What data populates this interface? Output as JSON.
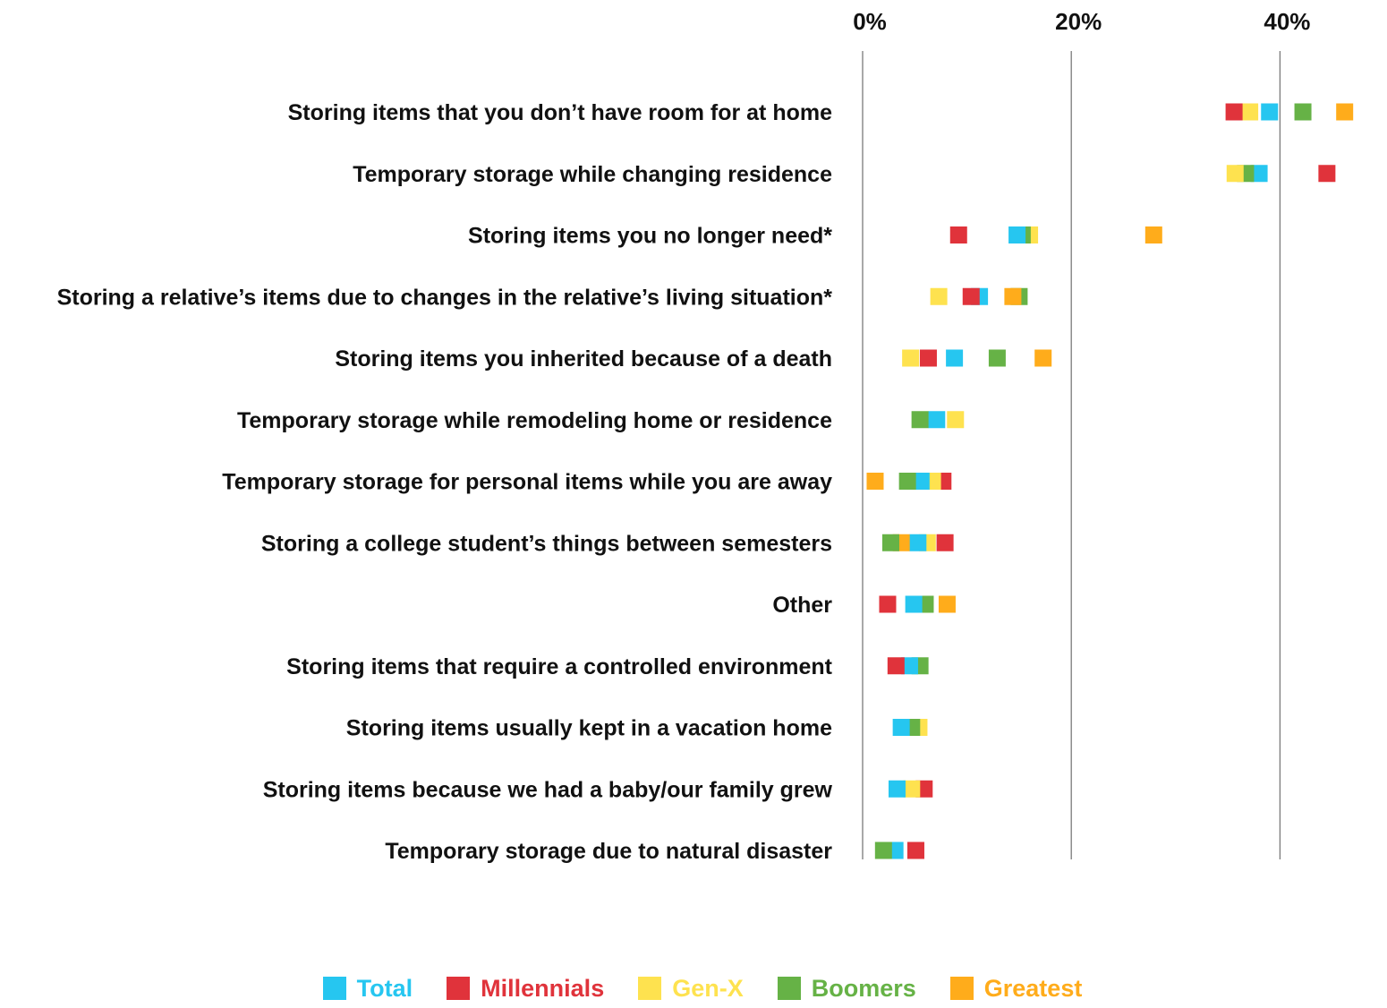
{
  "chart_data": {
    "type": "scatter",
    "title": "",
    "xlabel": "",
    "ylabel": "",
    "xlim": [
      0,
      50
    ],
    "x_ticks": [
      {
        "value": 0,
        "label": "0%"
      },
      {
        "value": 20,
        "label": "20%"
      },
      {
        "value": 40,
        "label": "40%"
      }
    ],
    "grid": true,
    "legend_position": "bottom",
    "categories": [
      "Storing items that you don’t have room for at home",
      "Temporary storage while changing residence",
      "Storing items you no longer need*",
      "Storing a relative’s items due to changes in the relative’s living situation*",
      "Storing items you inherited because of a death",
      "Temporary storage while remodeling home or residence",
      "Temporary storage for personal items while you are away",
      "Storing a college student’s things between semesters",
      "Other",
      "Storing items that require a controlled environment",
      "Storing items usually kept in a vacation home",
      "Storing items because we had a baby/our family grew",
      "Temporary storage due to natural disaster"
    ],
    "series": [
      {
        "name": "Total",
        "color": "#26c6f0",
        "values": [
          39.0,
          38.0,
          14.8,
          11.2,
          8.8,
          7.1,
          5.6,
          5.3,
          4.9,
          4.5,
          3.7,
          3.3,
          3.1
        ]
      },
      {
        "name": "Millennials",
        "color": "#e0333b",
        "values": [
          35.6,
          44.5,
          9.2,
          10.4,
          6.3,
          null,
          7.7,
          7.9,
          2.4,
          3.2,
          null,
          5.9,
          5.1
        ]
      },
      {
        "name": "Gen-X",
        "color": "#fee24f",
        "values": [
          37.1,
          35.7,
          16.0,
          7.3,
          4.6,
          8.9,
          6.7,
          6.2,
          null,
          null,
          5.4,
          4.7,
          null
        ]
      },
      {
        "name": "Boomers",
        "color": "#66b246",
        "values": [
          42.2,
          36.7,
          15.3,
          15.0,
          12.9,
          5.5,
          4.3,
          2.7,
          6.0,
          5.5,
          4.7,
          null,
          2.0
        ]
      },
      {
        "name": "Greatest",
        "color": "#ffac1b",
        "values": [
          46.2,
          null,
          27.9,
          14.4,
          17.3,
          null,
          1.2,
          3.7,
          8.1,
          null,
          null,
          null,
          null
        ]
      }
    ]
  }
}
